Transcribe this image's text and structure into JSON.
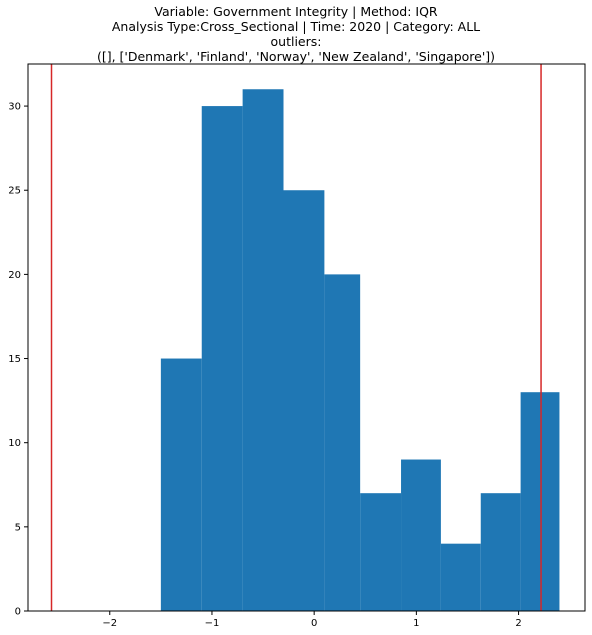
{
  "chart_data": {
    "type": "bar",
    "title_lines": [
      "Variable: Government Integrity | Method: IQR",
      "Analysis Type:Cross_Sectional | Time: 2020 | Category: ALL",
      "outliers:",
      "([], ['Denmark', 'Finland', 'Norway', 'New Zealand', 'Singapore'])"
    ],
    "bins": [
      {
        "x0": -1.5,
        "x1": -1.1,
        "count": 15
      },
      {
        "x0": -1.1,
        "x1": -0.7,
        "count": 30
      },
      {
        "x0": -0.7,
        "x1": -0.3,
        "count": 31
      },
      {
        "x0": -0.3,
        "x1": 0.1,
        "count": 25
      },
      {
        "x0": 0.1,
        "x1": 0.45,
        "count": 20
      },
      {
        "x0": 0.45,
        "x1": 0.85,
        "count": 7
      },
      {
        "x0": 0.85,
        "x1": 1.24,
        "count": 9
      },
      {
        "x0": 1.24,
        "x1": 1.63,
        "count": 4
      },
      {
        "x0": 1.63,
        "x1": 2.02,
        "count": 7
      },
      {
        "x0": 2.02,
        "x1": 2.4,
        "count": 13
      }
    ],
    "vlines": [
      {
        "x": -2.57,
        "color": "#d62728"
      },
      {
        "x": 2.22,
        "color": "#d62728"
      }
    ],
    "bar_color": "#1f77b4",
    "xlim": [
      -2.8,
      2.65
    ],
    "ylim": [
      0,
      32.5
    ],
    "xticks": [
      -2,
      -1,
      0,
      1,
      2
    ],
    "xtick_labels": [
      "−2",
      "−1",
      "0",
      "1",
      "2"
    ],
    "yticks": [
      0,
      5,
      10,
      15,
      20,
      25,
      30
    ],
    "ytick_labels": [
      "0",
      "5",
      "10",
      "15",
      "20",
      "25",
      "30"
    ],
    "grid": false
  }
}
